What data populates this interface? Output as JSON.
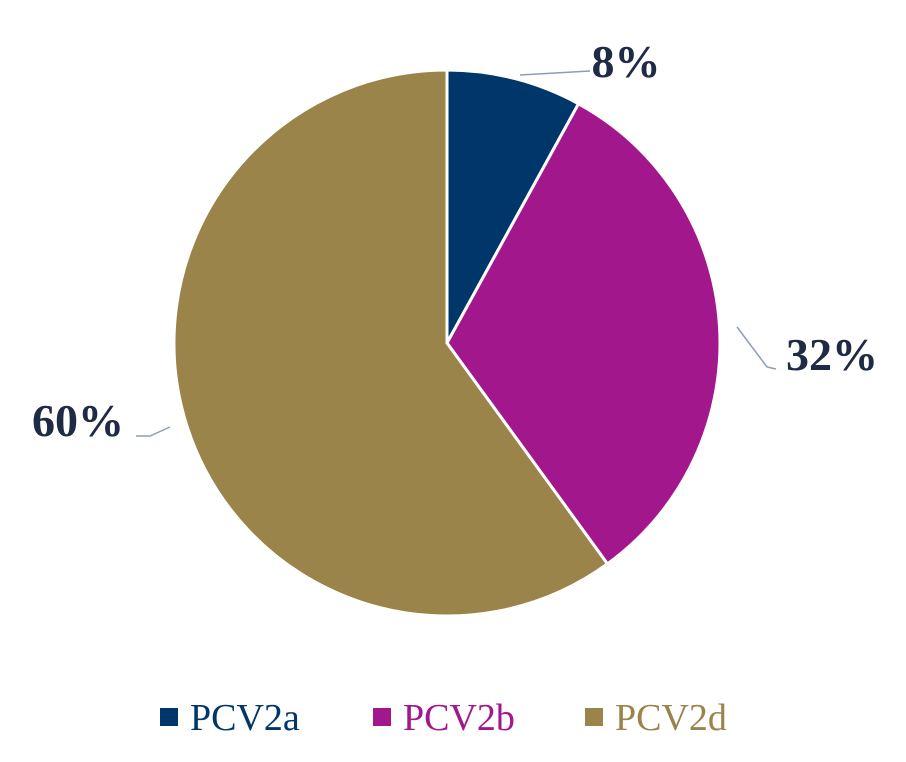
{
  "chart_data": {
    "type": "pie",
    "categories": [
      "PCV2a",
      "PCV2b",
      "PCV2d"
    ],
    "values": [
      8,
      32,
      60
    ],
    "labels": [
      "8%",
      "32%",
      "60%"
    ],
    "colors": [
      "#00376b",
      "#a3178c",
      "#9b844a"
    ],
    "label_color": "#1f2a44",
    "legend_position": "bottom"
  }
}
